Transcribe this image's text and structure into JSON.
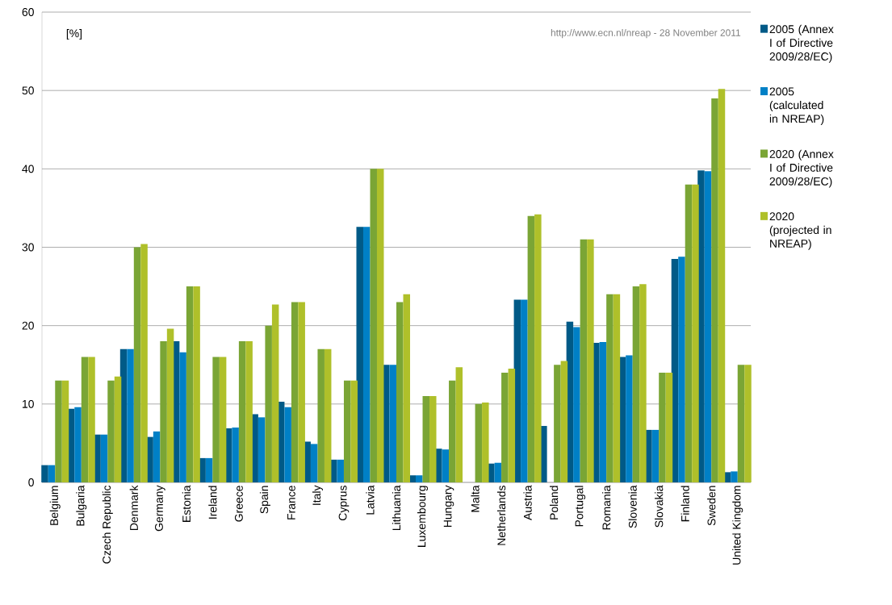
{
  "chart_data": {
    "type": "bar",
    "categories": [
      "Belgium",
      "Bulgaria",
      "Czech Republic",
      "Denmark",
      "Germany",
      "Estonia",
      "Ireland",
      "Greece",
      "Spain",
      "France",
      "Italy",
      "Cyprus",
      "Latvia",
      "Lithuania",
      "Luxembourg",
      "Hungary",
      "Malta",
      "Netherlands",
      "Austria",
      "Poland",
      "Portugal",
      "Romania",
      "Slovenia",
      "Slovakia",
      "Finland",
      "Sweden",
      "United Kingdom"
    ],
    "series": [
      {
        "name": "2005 (Annex I of Directive 2009/28/EC)",
        "color": "#005a87",
        "values": [
          2.2,
          9.4,
          6.1,
          17,
          5.8,
          18,
          3.1,
          6.9,
          8.7,
          10.3,
          5.2,
          2.9,
          32.6,
          15,
          0.9,
          4.3,
          0,
          2.4,
          23.3,
          7.2,
          20.5,
          17.8,
          16,
          6.7,
          28.5,
          39.8,
          1.3
        ]
      },
      {
        "name": "2005 (calculated in NREAP)",
        "color": "#0080c6",
        "values": [
          2.2,
          9.6,
          6.1,
          17,
          6.5,
          16.6,
          3.1,
          7.0,
          8.3,
          9.6,
          4.9,
          2.9,
          32.6,
          15,
          0.9,
          4.2,
          null,
          2.5,
          23.3,
          null,
          19.8,
          17.9,
          16.2,
          6.7,
          28.8,
          39.7,
          1.4
        ]
      },
      {
        "name": "2020 (Annex I of Directive 2009/28/EC)",
        "color": "#7aa535",
        "values": [
          13,
          16,
          13,
          30,
          18,
          25,
          16,
          18,
          20,
          23,
          17,
          13,
          40,
          23,
          11,
          13,
          10,
          14,
          34,
          15,
          31,
          24,
          25,
          14,
          38,
          49,
          15
        ]
      },
      {
        "name": "2020 (projected in NREAP)",
        "color": "#afc02a",
        "values": [
          13,
          16,
          13.5,
          30.4,
          19.6,
          25,
          16,
          18,
          22.7,
          23,
          17,
          13,
          40,
          24,
          11,
          14.7,
          10.2,
          14.5,
          34.2,
          15.5,
          31,
          24,
          25.3,
          14,
          38,
          50.2,
          15
        ]
      }
    ],
    "ylim": [
      0,
      60
    ],
    "yticks": [
      0,
      10,
      20,
      30,
      40,
      50,
      60
    ],
    "grid": "y",
    "legend": "right",
    "annotations": [
      "[%]",
      "http://www.ecn.nl/nreap - 28 November 2011"
    ]
  }
}
